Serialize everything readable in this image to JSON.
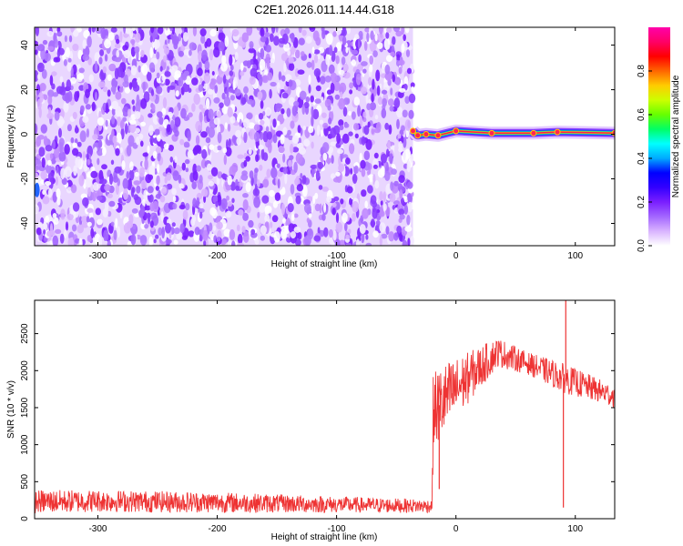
{
  "figure": {
    "title": "C2E1.2026.011.14.44.G18"
  },
  "chart_data": [
    {
      "type": "heatmap",
      "title": "C2E1.2026.011.14.44.G18",
      "xlabel": "Height of straight line (km)",
      "ylabel": "Frequency (Hz)",
      "xlim": [
        -353,
        133
      ],
      "ylim": [
        -50,
        48
      ],
      "xticks": [
        -300,
        -200,
        -100,
        0,
        100
      ],
      "yticks": [
        -40,
        -20,
        0,
        20,
        40
      ],
      "noise_region_x": [
        -353,
        -36
      ],
      "signal_region_x": [
        -36,
        133
      ],
      "signal_ridge": [
        {
          "x": -36,
          "y": 1.5,
          "amp": 0.9
        },
        {
          "x": -32,
          "y": -0.5,
          "amp": 0.8
        },
        {
          "x": -25,
          "y": 0,
          "amp": 0.85
        },
        {
          "x": -15,
          "y": -0.5,
          "amp": 0.8
        },
        {
          "x": 0,
          "y": 1.5,
          "amp": 0.9
        },
        {
          "x": 30,
          "y": 0.5,
          "amp": 0.95
        },
        {
          "x": 65,
          "y": 0.5,
          "amp": 0.9
        },
        {
          "x": 85,
          "y": 1,
          "amp": 0.85
        },
        {
          "x": 133,
          "y": 0.5,
          "amp": 0.95
        }
      ],
      "colorbar": {
        "label": "Normalized spectral amplitude",
        "ticks": [
          "0.0",
          "0.2",
          "0.4",
          "0.6",
          "0.8"
        ],
        "range": [
          0,
          1
        ],
        "colors": [
          "#ffffff",
          "#d9b3ff",
          "#a366ff",
          "#7a1fff",
          "#3300ff",
          "#0000ff",
          "#00aaff",
          "#00ffff",
          "#00ff66",
          "#66ff00",
          "#ccff00",
          "#ffcc00",
          "#ff6600",
          "#ff0000",
          "#ff0066",
          "#ff00aa"
        ]
      }
    },
    {
      "type": "line",
      "xlabel": "Height of straight line (km)",
      "ylabel": "SNR (10 * v/v)",
      "xlim": [
        -353,
        133
      ],
      "ylim": [
        0,
        2950
      ],
      "xticks": [
        -300,
        -200,
        -100,
        0,
        100
      ],
      "yticks": [
        0,
        500,
        1000,
        1500,
        2000,
        2500
      ],
      "color": "#ee3333",
      "envelope": [
        {
          "x": -353,
          "mean": 230,
          "spread": 160
        },
        {
          "x": -300,
          "mean": 240,
          "spread": 150
        },
        {
          "x": -200,
          "mean": 220,
          "spread": 140
        },
        {
          "x": -100,
          "mean": 190,
          "spread": 110
        },
        {
          "x": -20,
          "mean": 170,
          "spread": 90
        },
        {
          "x": -19,
          "mean": 1450,
          "spread": 550
        },
        {
          "x": -10,
          "mean": 1600,
          "spread": 500
        },
        {
          "x": 10,
          "mean": 1900,
          "spread": 350
        },
        {
          "x": 35,
          "mean": 2250,
          "spread": 200
        },
        {
          "x": 60,
          "mean": 2100,
          "spread": 150
        },
        {
          "x": 90,
          "mean": 1900,
          "spread": 200
        },
        {
          "x": 133,
          "mean": 1650,
          "spread": 150
        }
      ],
      "features": [
        {
          "x": 92,
          "y": 2950,
          "label": ""
        },
        {
          "x": 90,
          "y": 150,
          "label": ""
        },
        {
          "x": -14,
          "y": 400,
          "label": ""
        }
      ]
    }
  ]
}
